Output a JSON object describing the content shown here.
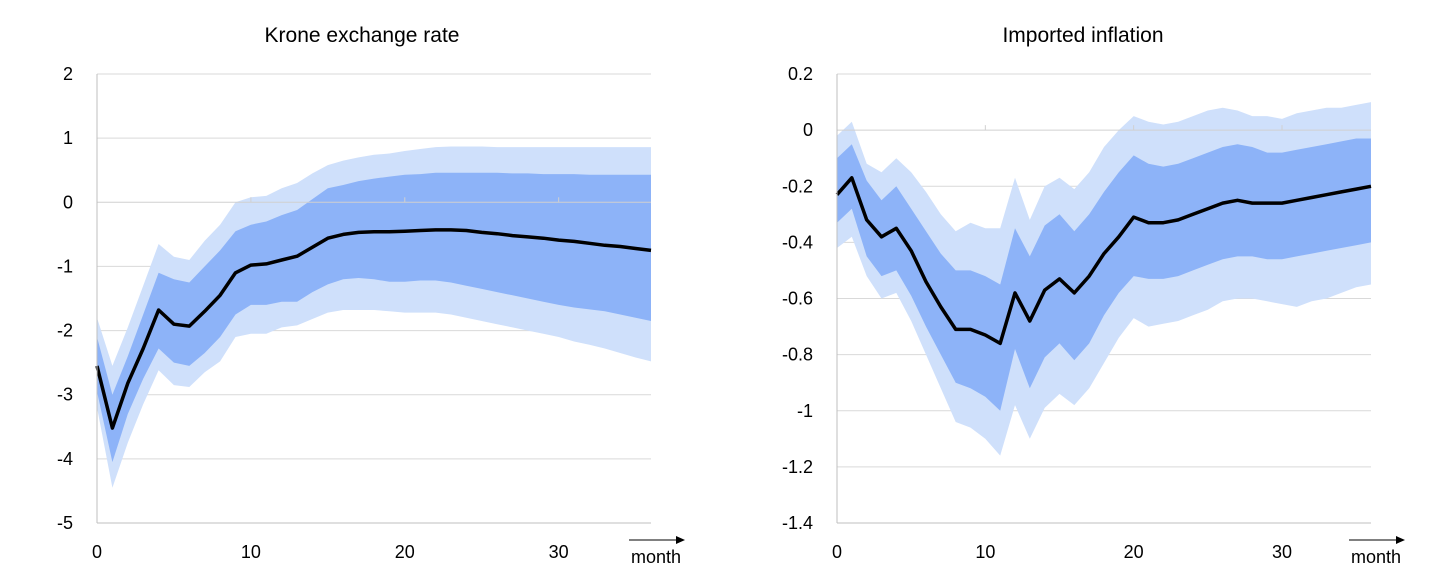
{
  "chart_data": [
    {
      "type": "area",
      "title": "Krone exchange rate",
      "xlabel": "month",
      "ylabel": "",
      "xlim": [
        0,
        36
      ],
      "ylim": [
        -5,
        2
      ],
      "x_ticks": [
        0,
        10,
        20,
        30
      ],
      "y_ticks": [
        2,
        1,
        0,
        -1,
        -2,
        -3,
        -4,
        -5
      ],
      "y_tick_labels": [
        "2",
        "1",
        "0",
        "-1",
        "-2",
        "-3",
        "-4",
        "-5"
      ],
      "grid": "horizontal",
      "colors": {
        "outer_band": "#cfe0fb",
        "inner_band": "#8db3f8",
        "line": "#000000"
      },
      "x": [
        0,
        1,
        2,
        3,
        4,
        5,
        6,
        7,
        8,
        9,
        10,
        11,
        12,
        13,
        14,
        15,
        16,
        17,
        18,
        19,
        20,
        21,
        22,
        23,
        24,
        25,
        26,
        27,
        28,
        29,
        30,
        31,
        32,
        33,
        34,
        35,
        36
      ],
      "series": [
        {
          "role": "outer_upper",
          "values": [
            -1.8,
            -2.55,
            -1.95,
            -1.3,
            -0.65,
            -0.85,
            -0.9,
            -0.6,
            -0.35,
            0.0,
            0.08,
            0.1,
            0.22,
            0.3,
            0.45,
            0.58,
            0.65,
            0.7,
            0.74,
            0.76,
            0.8,
            0.83,
            0.86,
            0.87,
            0.87,
            0.87,
            0.86,
            0.86,
            0.86,
            0.86,
            0.86,
            0.86,
            0.86,
            0.86,
            0.86,
            0.86,
            0.86
          ]
        },
        {
          "role": "inner_upper",
          "values": [
            -2.1,
            -3.0,
            -2.4,
            -1.75,
            -1.1,
            -1.2,
            -1.25,
            -1.0,
            -0.75,
            -0.45,
            -0.35,
            -0.3,
            -0.2,
            -0.12,
            0.05,
            0.22,
            0.27,
            0.33,
            0.37,
            0.4,
            0.43,
            0.44,
            0.46,
            0.46,
            0.46,
            0.46,
            0.46,
            0.45,
            0.45,
            0.44,
            0.44,
            0.44,
            0.43,
            0.43,
            0.43,
            0.43,
            0.43
          ]
        },
        {
          "role": "median",
          "values": [
            -2.55,
            -3.52,
            -2.82,
            -2.28,
            -1.68,
            -1.9,
            -1.93,
            -1.7,
            -1.45,
            -1.1,
            -0.98,
            -0.96,
            -0.9,
            -0.84,
            -0.7,
            -0.56,
            -0.5,
            -0.47,
            -0.46,
            -0.46,
            -0.45,
            -0.44,
            -0.43,
            -0.43,
            -0.44,
            -0.47,
            -0.49,
            -0.52,
            -0.54,
            -0.56,
            -0.59,
            -0.61,
            -0.64,
            -0.67,
            -0.69,
            -0.72,
            -0.75
          ]
        },
        {
          "role": "inner_lower",
          "values": [
            -2.95,
            -4.05,
            -3.3,
            -2.75,
            -2.28,
            -2.5,
            -2.55,
            -2.35,
            -2.1,
            -1.75,
            -1.6,
            -1.6,
            -1.55,
            -1.55,
            -1.4,
            -1.28,
            -1.2,
            -1.18,
            -1.2,
            -1.24,
            -1.24,
            -1.22,
            -1.22,
            -1.25,
            -1.3,
            -1.35,
            -1.4,
            -1.45,
            -1.5,
            -1.55,
            -1.6,
            -1.64,
            -1.67,
            -1.7,
            -1.75,
            -1.8,
            -1.85
          ]
        },
        {
          "role": "outer_lower",
          "values": [
            -3.2,
            -4.45,
            -3.75,
            -3.15,
            -2.62,
            -2.85,
            -2.88,
            -2.65,
            -2.48,
            -2.1,
            -2.05,
            -2.05,
            -1.95,
            -1.92,
            -1.82,
            -1.72,
            -1.68,
            -1.68,
            -1.68,
            -1.7,
            -1.72,
            -1.72,
            -1.72,
            -1.75,
            -1.8,
            -1.85,
            -1.9,
            -1.95,
            -2.0,
            -2.05,
            -2.1,
            -2.17,
            -2.22,
            -2.28,
            -2.35,
            -2.42,
            -2.48
          ]
        }
      ]
    },
    {
      "type": "area",
      "title": "Imported inflation",
      "xlabel": "month",
      "ylabel": "",
      "xlim": [
        0,
        36
      ],
      "ylim": [
        -1.4,
        0.2
      ],
      "x_ticks": [
        0,
        10,
        20,
        30
      ],
      "y_ticks": [
        0.2,
        0,
        -0.2,
        -0.4,
        -0.6,
        -0.8,
        -1,
        -1.2,
        -1.4
      ],
      "y_tick_labels": [
        "0.2",
        "0",
        "-0.2",
        "-0.4",
        "-0.6",
        "-0.8",
        "-1",
        "-1.2",
        "-1.4"
      ],
      "grid": "horizontal",
      "colors": {
        "outer_band": "#cfe0fb",
        "inner_band": "#8db3f8",
        "line": "#000000"
      },
      "x": [
        0,
        1,
        2,
        3,
        4,
        5,
        6,
        7,
        8,
        9,
        10,
        11,
        12,
        13,
        14,
        15,
        16,
        17,
        18,
        19,
        20,
        21,
        22,
        23,
        24,
        25,
        26,
        27,
        28,
        29,
        30,
        31,
        32,
        33,
        34,
        35,
        36
      ],
      "series": [
        {
          "role": "outer_upper",
          "values": [
            -0.02,
            0.03,
            -0.12,
            -0.15,
            -0.1,
            -0.15,
            -0.22,
            -0.3,
            -0.36,
            -0.33,
            -0.35,
            -0.35,
            -0.17,
            -0.32,
            -0.2,
            -0.17,
            -0.21,
            -0.15,
            -0.06,
            0.0,
            0.05,
            0.03,
            0.02,
            0.03,
            0.05,
            0.07,
            0.08,
            0.07,
            0.05,
            0.05,
            0.04,
            0.06,
            0.07,
            0.08,
            0.08,
            0.09,
            0.1
          ]
        },
        {
          "role": "inner_upper",
          "values": [
            -0.1,
            -0.05,
            -0.18,
            -0.25,
            -0.2,
            -0.28,
            -0.36,
            -0.44,
            -0.5,
            -0.5,
            -0.52,
            -0.55,
            -0.35,
            -0.45,
            -0.34,
            -0.3,
            -0.36,
            -0.3,
            -0.22,
            -0.15,
            -0.09,
            -0.12,
            -0.13,
            -0.12,
            -0.1,
            -0.08,
            -0.06,
            -0.05,
            -0.06,
            -0.08,
            -0.08,
            -0.07,
            -0.06,
            -0.05,
            -0.04,
            -0.03,
            -0.03
          ]
        },
        {
          "role": "median",
          "values": [
            -0.23,
            -0.17,
            -0.32,
            -0.38,
            -0.35,
            -0.43,
            -0.54,
            -0.63,
            -0.71,
            -0.71,
            -0.73,
            -0.76,
            -0.58,
            -0.68,
            -0.57,
            -0.53,
            -0.58,
            -0.52,
            -0.44,
            -0.38,
            -0.31,
            -0.33,
            -0.33,
            -0.32,
            -0.3,
            -0.28,
            -0.26,
            -0.25,
            -0.26,
            -0.26,
            -0.26,
            -0.25,
            -0.24,
            -0.23,
            -0.22,
            -0.21,
            -0.2
          ]
        },
        {
          "role": "inner_lower",
          "values": [
            -0.33,
            -0.28,
            -0.45,
            -0.52,
            -0.5,
            -0.59,
            -0.7,
            -0.8,
            -0.9,
            -0.92,
            -0.95,
            -1.0,
            -0.78,
            -0.92,
            -0.81,
            -0.76,
            -0.82,
            -0.76,
            -0.66,
            -0.58,
            -0.52,
            -0.53,
            -0.53,
            -0.52,
            -0.5,
            -0.48,
            -0.46,
            -0.45,
            -0.45,
            -0.46,
            -0.46,
            -0.45,
            -0.44,
            -0.43,
            -0.42,
            -0.41,
            -0.4
          ]
        },
        {
          "role": "outer_lower",
          "values": [
            -0.42,
            -0.38,
            -0.52,
            -0.6,
            -0.58,
            -0.68,
            -0.8,
            -0.92,
            -1.04,
            -1.06,
            -1.1,
            -1.16,
            -0.98,
            -1.1,
            -0.99,
            -0.94,
            -0.98,
            -0.92,
            -0.83,
            -0.74,
            -0.67,
            -0.7,
            -0.69,
            -0.68,
            -0.66,
            -0.64,
            -0.61,
            -0.6,
            -0.6,
            -0.61,
            -0.62,
            -0.63,
            -0.61,
            -0.6,
            -0.58,
            -0.56,
            -0.55
          ]
        }
      ]
    }
  ]
}
